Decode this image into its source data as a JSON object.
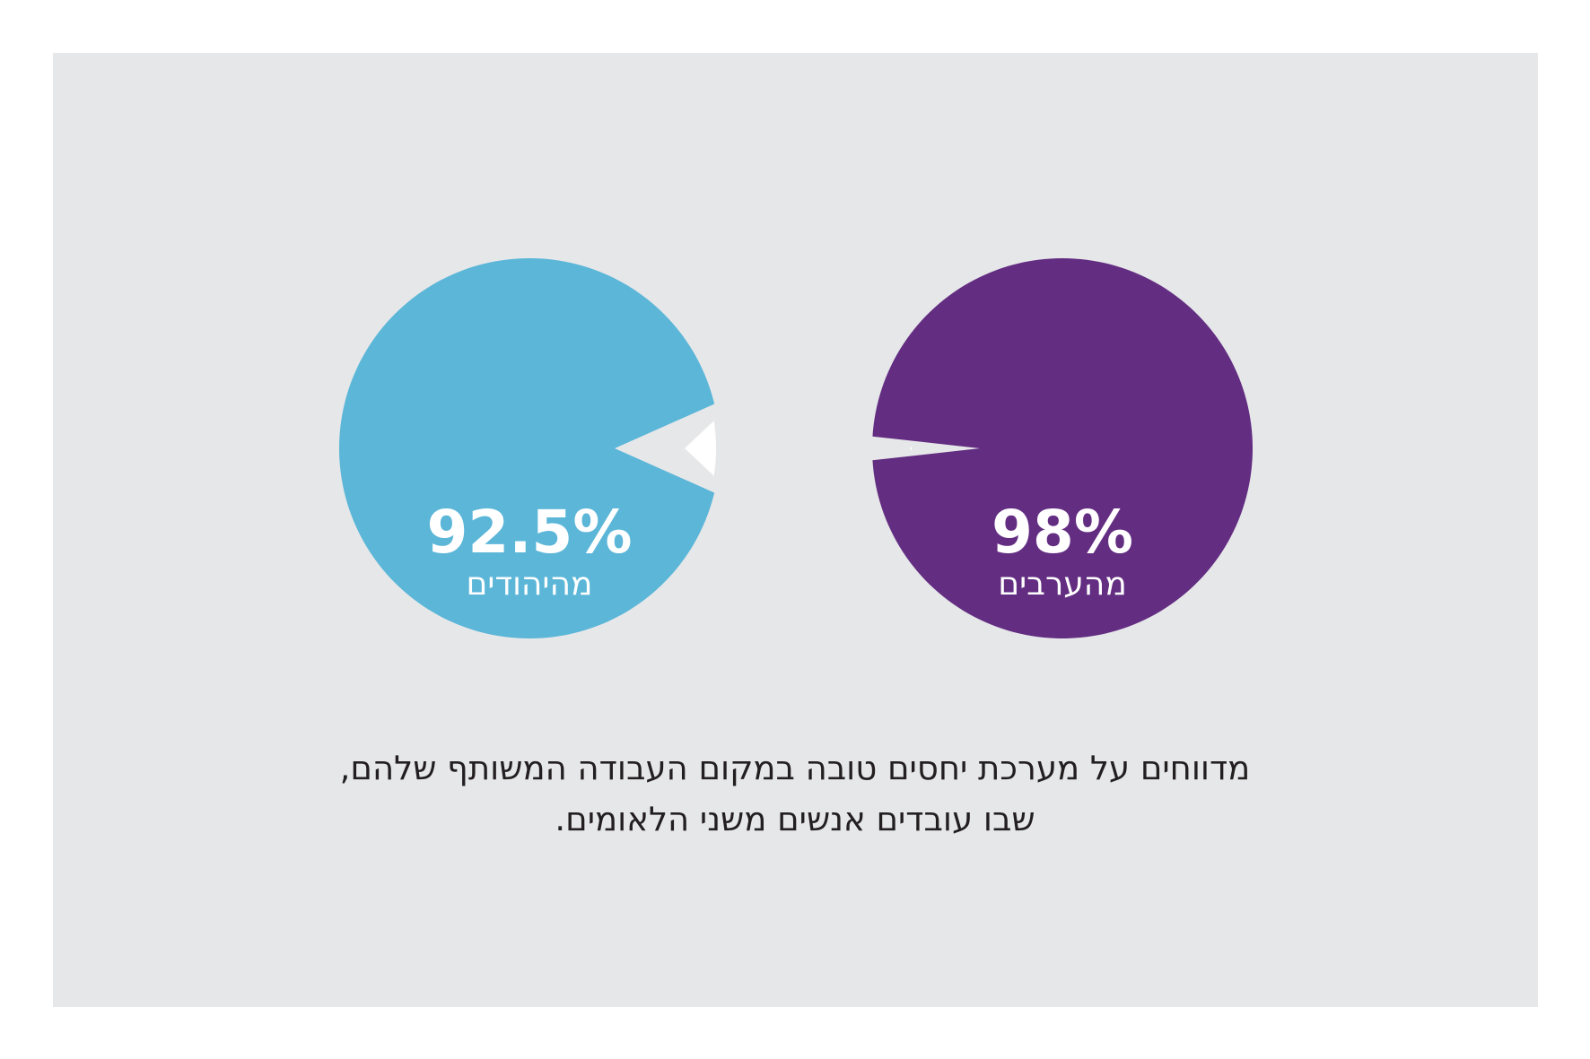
{
  "chart_data": [
    {
      "type": "pie",
      "values": [
        92.5,
        7.5
      ],
      "value_label": "92.5%",
      "group_label": "מהיהודים",
      "color": "#5bb6d8",
      "remainder_color": "#ffffff"
    },
    {
      "type": "pie",
      "values": [
        98,
        2
      ],
      "value_label": "98%",
      "group_label": "מהערבים",
      "color": "#632d82",
      "remainder_color": "#ffffff"
    }
  ],
  "caption": {
    "line1": "מדווחים על מערכת יחסים טובה במקום העבודה המשותף שלהם,",
    "line2": "שבו עובדים אנשים משני הלאומים."
  },
  "colors": {
    "background": "#e6e7e9",
    "label_text": "#ffffff",
    "caption_text": "#231f20"
  }
}
